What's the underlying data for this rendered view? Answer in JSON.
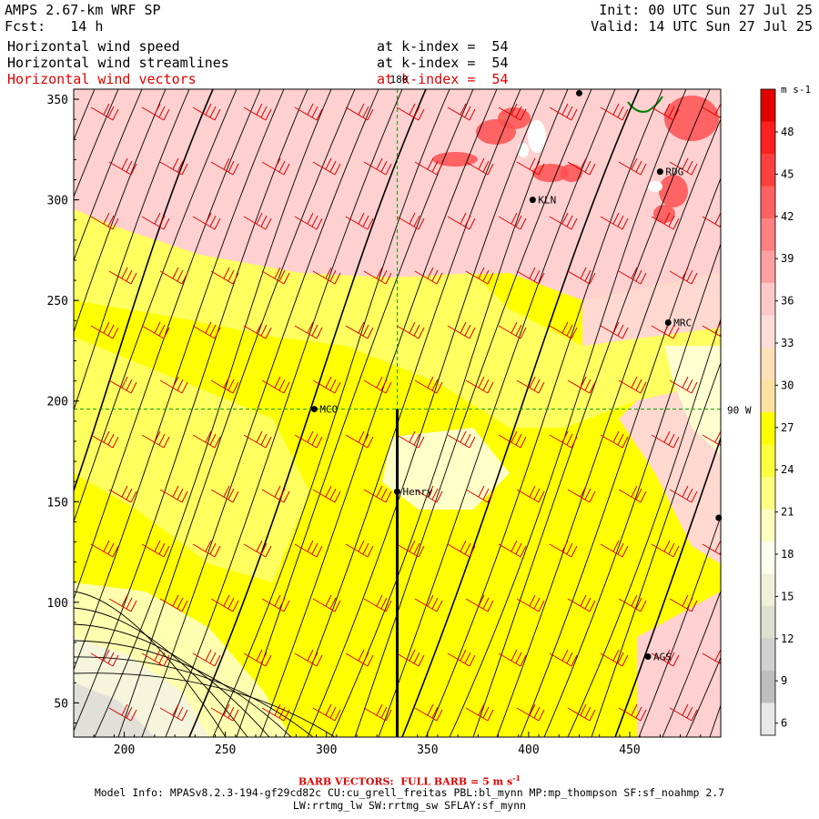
{
  "header": {
    "model": "AMPS 2.67-km WRF SP",
    "forecast": "Fcst:   14 h",
    "init": "Init: 00 UTC Sun 27 Jul 25",
    "valid": "Valid: 14 UTC Sun 27 Jul 25"
  },
  "fields": [
    {
      "name": "Horizontal wind speed",
      "level": "at k-index =  54",
      "color": "#000000"
    },
    {
      "name": "Horizontal wind streamlines",
      "level": "at k-index =  54",
      "color": "#000000"
    },
    {
      "name": "Horizontal wind vectors",
      "level": "at k-index =  54",
      "color": "#e00000"
    }
  ],
  "axes": {
    "x_ticks": [
      200,
      250,
      300,
      350,
      400,
      450
    ],
    "y_ticks": [
      50,
      100,
      150,
      200,
      250,
      300,
      350
    ],
    "xlim": [
      175,
      495
    ],
    "ylim": [
      33,
      355
    ]
  },
  "gridlines": {
    "lon_label": "180",
    "lat_label": "90 W",
    "lon_x": 335,
    "lat_y": 196
  },
  "stations": [
    {
      "name": "MCO",
      "x": 294,
      "y": 196
    },
    {
      "name": "Henry",
      "x": 335,
      "y": 155
    },
    {
      "name": "KLN",
      "x": 402,
      "y": 300
    },
    {
      "name": "RDG",
      "x": 465,
      "y": 314
    },
    {
      "name": "MRC",
      "x": 469,
      "y": 239
    },
    {
      "name": "AGS",
      "x": 459,
      "y": 73
    },
    {
      "name": "",
      "x": 425,
      "y": 353
    },
    {
      "name": "",
      "x": 494,
      "y": 142
    }
  ],
  "colorbar": {
    "unit": "m s-1",
    "labels": [
      "48",
      "45",
      "42",
      "39",
      "36",
      "33",
      "30",
      "27",
      "24",
      "21",
      "18",
      "15",
      "12",
      "9",
      "6"
    ],
    "colors": [
      "#e00000",
      "#ff2020",
      "#ff4040",
      "#ff6060",
      "#ff8080",
      "#ffa0a0",
      "#ffc8c8",
      "#ffdcd8",
      "#ffe0b8",
      "#ffe0a0",
      "#ffff00",
      "#ffff40",
      "#ffff80",
      "#ffffc0",
      "#fffff0",
      "#f0f0d8",
      "#e0e0d0",
      "#d0d0d0",
      "#bebebe",
      "#e8e8e8"
    ]
  },
  "footer": {
    "barb": "BARB VECTORS:  FULL BARB = 5 m s",
    "barb_sup": "-1",
    "model_info": "Model Info: MPASv8.2.3-194-gf29cd82c CU:cu_grell_freitas PBL:bl_mynn MP:mp_thompson SF:sf_noahmp 2.7",
    "model_info2": "LW:rrtmg_lw SW:rrtmg_sw SFLAY:sf_mynn"
  }
}
